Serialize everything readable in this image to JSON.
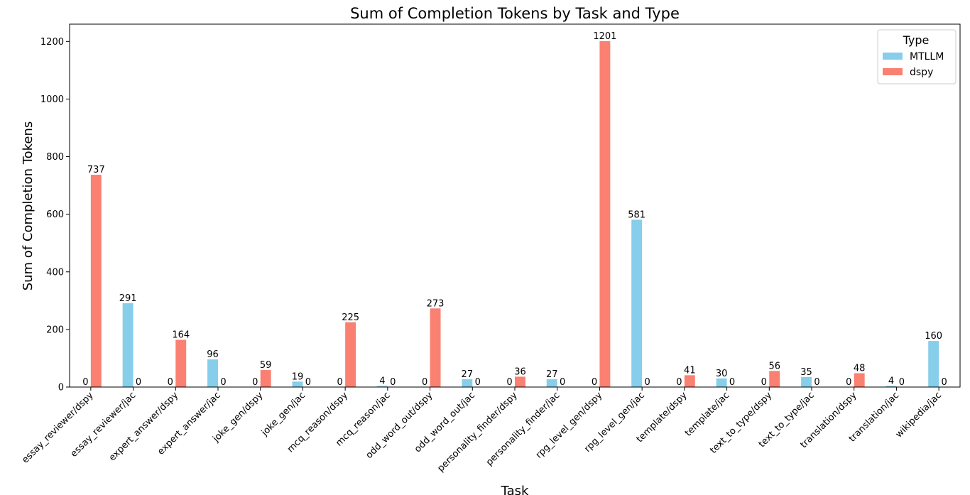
{
  "chart_data": {
    "type": "bar",
    "title": "Sum of Completion Tokens by Task and Type",
    "xlabel": "Task",
    "ylabel": "Sum of Completion Tokens",
    "ylim": [
      0,
      1260
    ],
    "yticks": [
      0,
      200,
      400,
      600,
      800,
      1000,
      1200
    ],
    "grid": false,
    "legend": {
      "title": "Type",
      "placement": "top-right"
    },
    "categories": [
      "essay_reviewer/dspy",
      "essay_reviewer/jac",
      "expert_answer/dspy",
      "expert_answer/jac",
      "joke_gen/dspy",
      "joke_gen/jac",
      "mcq_reason/dspy",
      "mcq_reason/jac",
      "odd_word_out/dspy",
      "odd_word_out/jac",
      "personality_finder/dspy",
      "personality_finder/jac",
      "rpg_level_gen/dspy",
      "rpg_level_gen/jac",
      "template/dspy",
      "template/jac",
      "text_to_type/dspy",
      "text_to_type/jac",
      "translation/dspy",
      "translation/jac",
      "wikipedia/jac"
    ],
    "series": [
      {
        "name": "MTLLM",
        "color": "#87ceeb",
        "values": [
          0,
          291,
          0,
          96,
          0,
          19,
          0,
          4,
          0,
          27,
          0,
          27,
          0,
          581,
          0,
          30,
          0,
          35,
          0,
          4,
          160
        ]
      },
      {
        "name": "dspy",
        "color": "#fa8072",
        "values": [
          737,
          0,
          164,
          0,
          59,
          0,
          225,
          0,
          273,
          0,
          36,
          0,
          1201,
          0,
          41,
          0,
          56,
          0,
          48,
          0,
          0
        ]
      }
    ]
  }
}
